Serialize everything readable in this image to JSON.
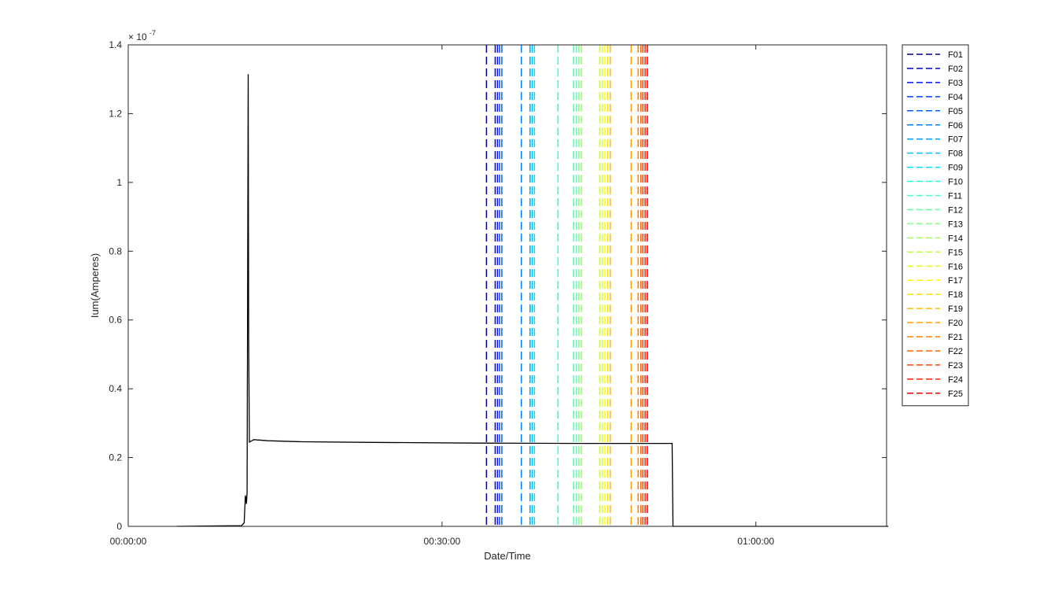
{
  "chart_data": {
    "type": "line",
    "xlabel": "Date/Time",
    "ylabel": "Ium(Amperes)",
    "y_exponent_label": "× 10",
    "y_exponent_power": "-7",
    "y_scale": 1e-07,
    "xlim": [
      0,
      4350
    ],
    "ylim": [
      0,
      1.4
    ],
    "x_ticks": [
      {
        "value": 0,
        "label": "00:00:00"
      },
      {
        "value": 1800,
        "label": "00:30:00"
      },
      {
        "value": 3600,
        "label": "01:00:00"
      }
    ],
    "y_ticks": [
      {
        "value": 0,
        "label": "0"
      },
      {
        "value": 0.2,
        "label": "0.2"
      },
      {
        "value": 0.4,
        "label": "0.4"
      },
      {
        "value": 0.6,
        "label": "0.6"
      },
      {
        "value": 0.8,
        "label": "0.8"
      },
      {
        "value": 1.0,
        "label": "1"
      },
      {
        "value": 1.2,
        "label": "1.2"
      },
      {
        "value": 1.4,
        "label": "1.4"
      }
    ],
    "grid": false,
    "legend_position": "outside-right",
    "main_series": {
      "color": "#000000",
      "points": [
        [
          280,
          0.0
        ],
        [
          650,
          0.002
        ],
        [
          665,
          0.01
        ],
        [
          672,
          0.09
        ],
        [
          678,
          0.065
        ],
        [
          682,
          0.1
        ],
        [
          688,
          1.315
        ],
        [
          691,
          0.55
        ],
        [
          695,
          0.245
        ],
        [
          720,
          0.252
        ],
        [
          800,
          0.249
        ],
        [
          1000,
          0.246
        ],
        [
          1400,
          0.244
        ],
        [
          2000,
          0.242
        ],
        [
          2600,
          0.241
        ],
        [
          3120,
          0.241
        ],
        [
          3125,
          0.0
        ],
        [
          3600,
          0.0
        ],
        [
          4360,
          0.0
        ]
      ]
    },
    "series": [
      {
        "name": "F01",
        "x": 2055,
        "color": "#00008f"
      },
      {
        "name": "F02",
        "x": 2105,
        "color": "#0000cf"
      },
      {
        "name": "F03",
        "x": 2118,
        "color": "#0010ff"
      },
      {
        "name": "F04",
        "x": 2130,
        "color": "#0040ff"
      },
      {
        "name": "F05",
        "x": 2143,
        "color": "#0060ff"
      },
      {
        "name": "F06",
        "x": 2255,
        "color": "#0080ff"
      },
      {
        "name": "F07",
        "x": 2305,
        "color": "#00a0ff"
      },
      {
        "name": "F08",
        "x": 2318,
        "color": "#00c0ff"
      },
      {
        "name": "F09",
        "x": 2330,
        "color": "#00e0ff"
      },
      {
        "name": "F10",
        "x": 2465,
        "color": "#20ffdf"
      },
      {
        "name": "F11",
        "x": 2555,
        "color": "#40ffbf"
      },
      {
        "name": "F12",
        "x": 2570,
        "color": "#60ff9f"
      },
      {
        "name": "F13",
        "x": 2585,
        "color": "#80ff80"
      },
      {
        "name": "F14",
        "x": 2600,
        "color": "#9fff60"
      },
      {
        "name": "F15",
        "x": 2705,
        "color": "#bfff40"
      },
      {
        "name": "F16",
        "x": 2720,
        "color": "#dfff20"
      },
      {
        "name": "F17",
        "x": 2735,
        "color": "#ffff00"
      },
      {
        "name": "F18",
        "x": 2750,
        "color": "#ffdf00"
      },
      {
        "name": "F19",
        "x": 2765,
        "color": "#ffbf00"
      },
      {
        "name": "F20",
        "x": 2885,
        "color": "#ff9f00"
      },
      {
        "name": "F21",
        "x": 2925,
        "color": "#ff8000"
      },
      {
        "name": "F22",
        "x": 2940,
        "color": "#ff6000"
      },
      {
        "name": "F23",
        "x": 2952,
        "color": "#ff4000"
      },
      {
        "name": "F24",
        "x": 2965,
        "color": "#ff2000"
      },
      {
        "name": "F25",
        "x": 2978,
        "color": "#ef0000"
      }
    ]
  }
}
